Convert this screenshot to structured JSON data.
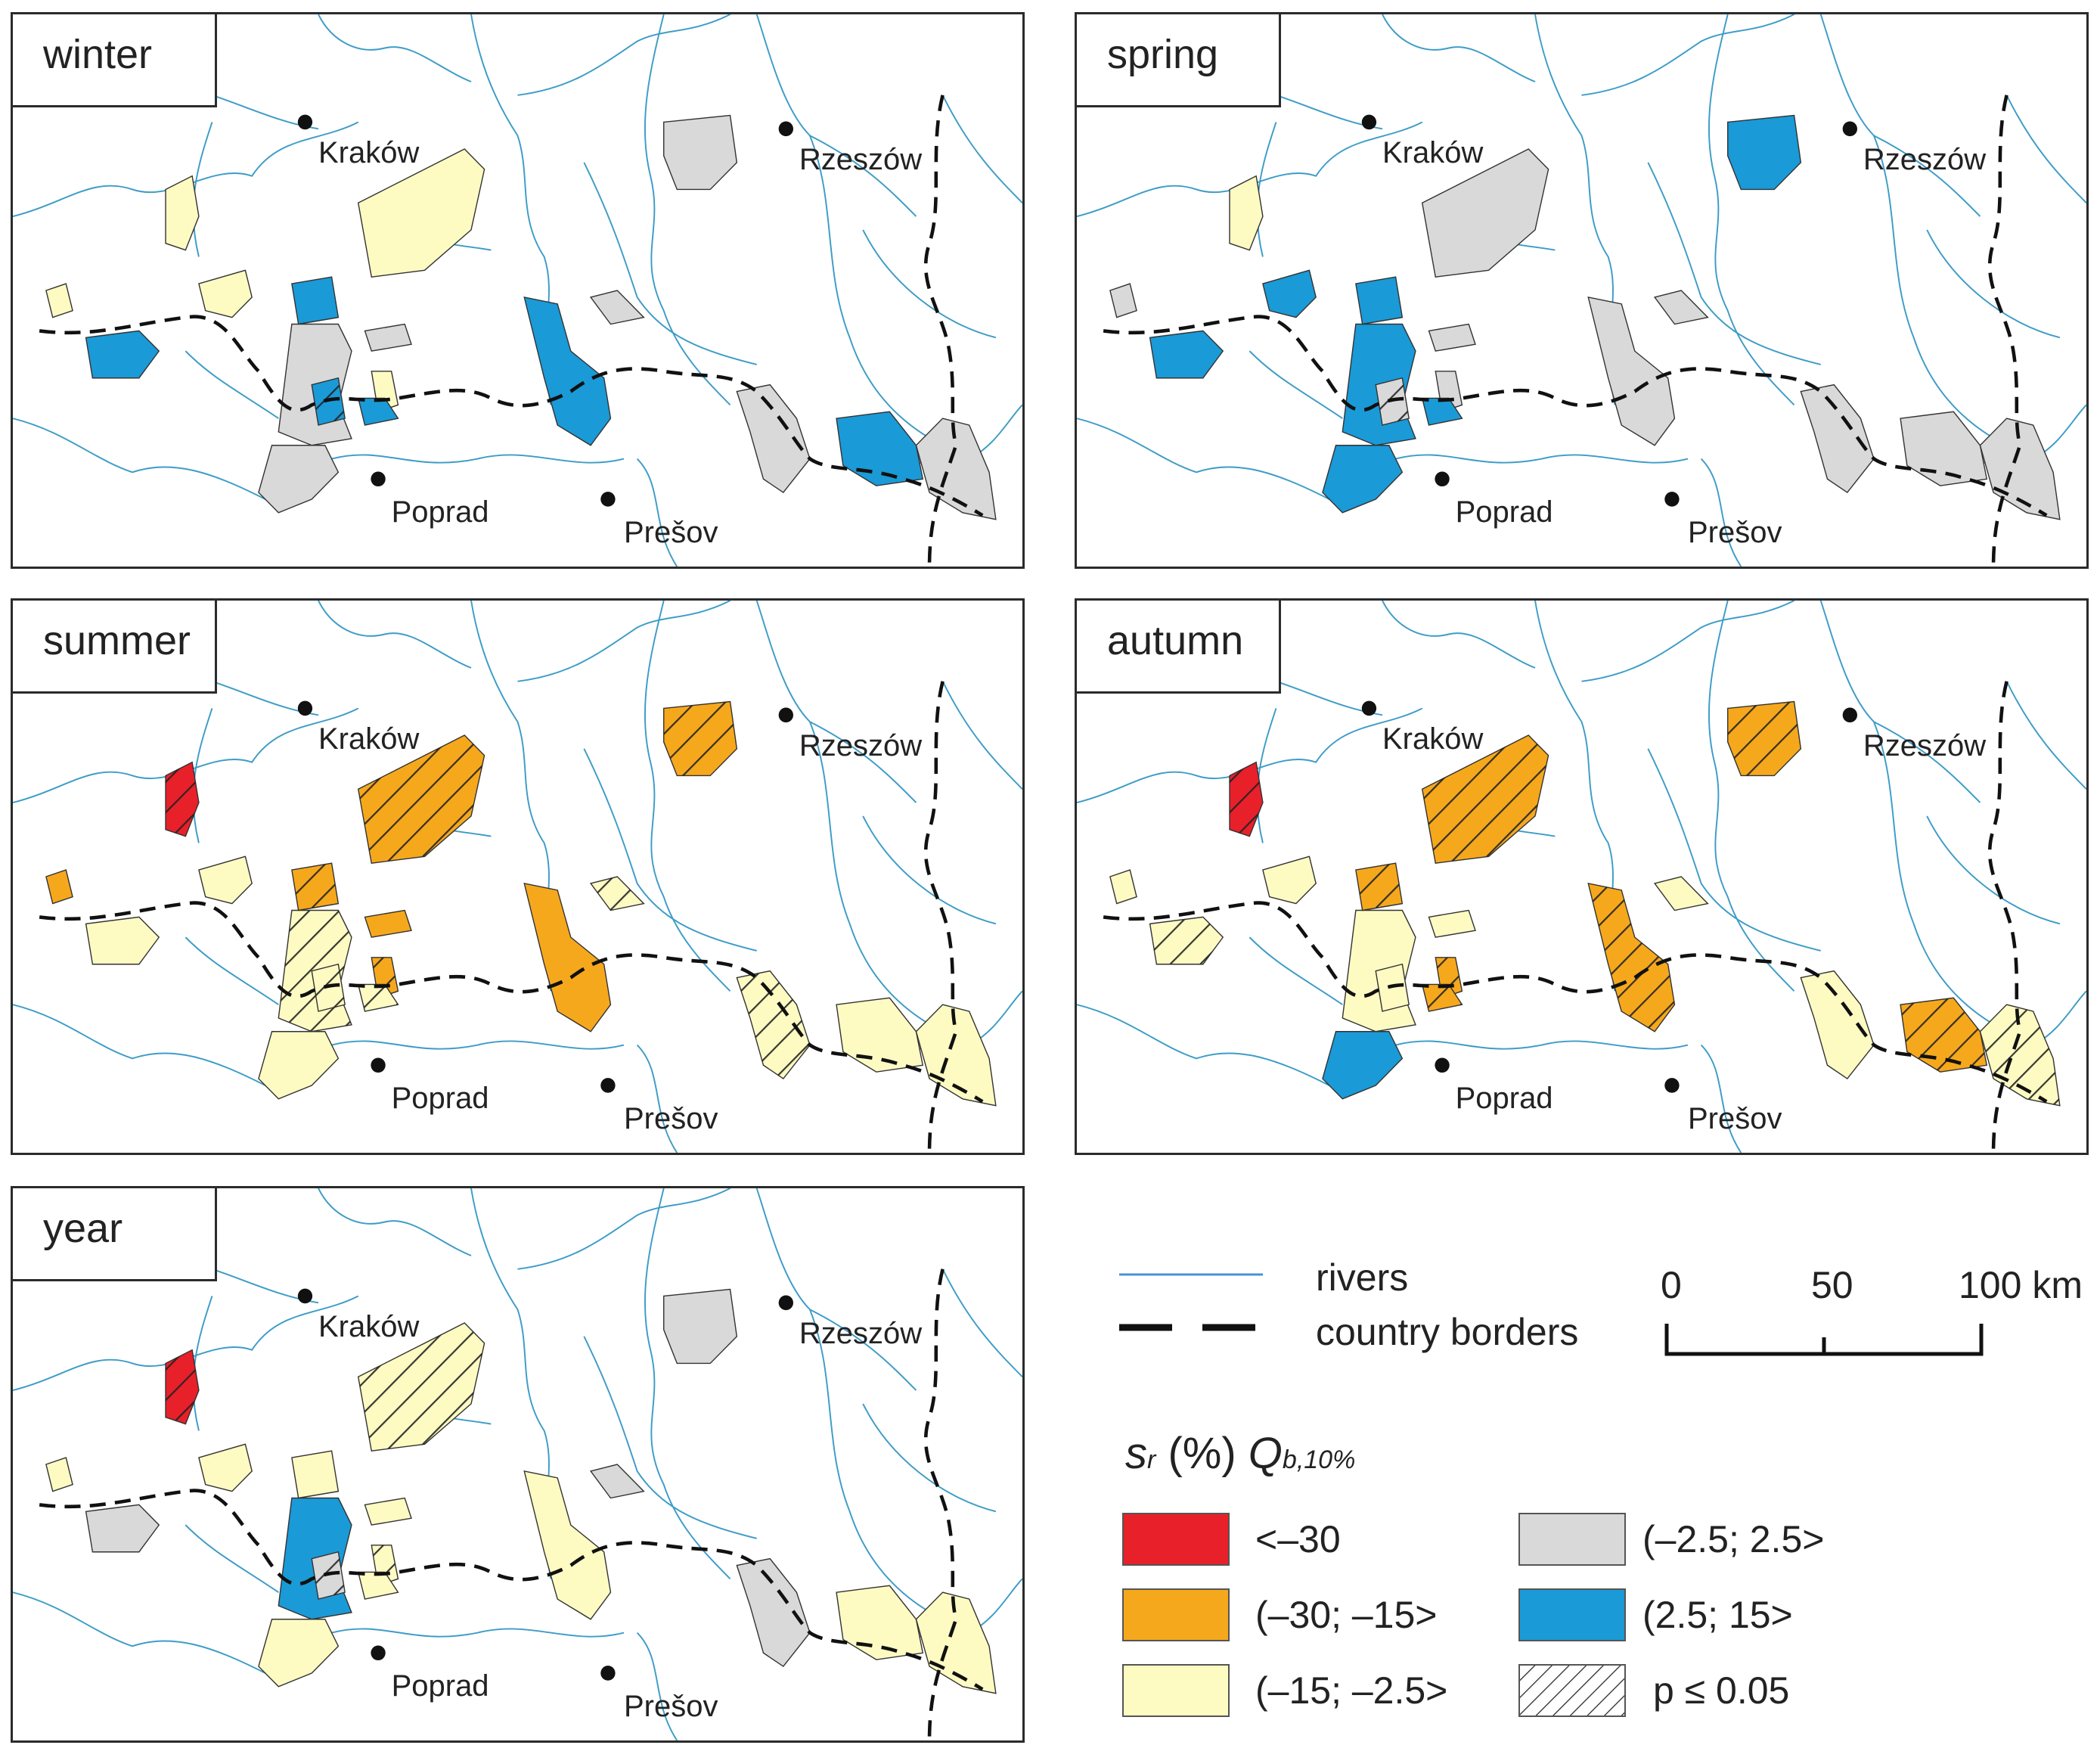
{
  "panels": [
    {
      "id": "winter",
      "label": "winter"
    },
    {
      "id": "spring",
      "label": "spring"
    },
    {
      "id": "summer",
      "label": "summer"
    },
    {
      "id": "autumn",
      "label": "autumn"
    },
    {
      "id": "year",
      "label": "year"
    }
  ],
  "cities": {
    "krakow": "Kraków",
    "rzeszow": "Rzeszów",
    "poprad": "Poprad",
    "presov": "Prešov"
  },
  "legend": {
    "rivers": "rivers",
    "borders": "country borders",
    "scale_0": "0",
    "scale_50": "50",
    "scale_100": "100 km",
    "title_s": "s",
    "title_r": "r",
    "title_pct": "(%)",
    "title_Q": "Q",
    "title_sub": "b,10%",
    "class_1": "<–30",
    "class_2": "(–30; –15>",
    "class_3": "(–15; –2.5>",
    "class_4": "(–2.5; 2.5>",
    "class_5": "(2.5; 15>",
    "class_6": "p ≤ 0.05"
  },
  "colors": {
    "red": "#e8202a",
    "orange": "#f6a81c",
    "yellow": "#fdfbc2",
    "gray": "#d9d9d9",
    "blue": "#1a9ad7",
    "river": "#3d9cc7"
  },
  "catchment_classes": {
    "winter": [
      "yellow",
      "yellow",
      "yellow",
      "blue",
      "yellow",
      "gray",
      "yellow",
      "gray",
      "blue",
      "gray",
      "gray",
      "blue",
      "gray",
      "gray",
      "blue",
      "gray",
      "blue",
      "blue"
    ],
    "spring": [
      "yellow",
      "blue",
      "gray",
      "blue",
      "gray",
      "gray",
      "gray",
      "blue",
      "gray",
      "blue",
      "gray",
      "gray",
      "blue",
      "gray",
      "gray",
      "gray",
      "blue",
      "blue"
    ],
    "summer": [
      "red",
      "yellow",
      "orange",
      "yellow",
      "orange",
      "orange",
      "orange",
      "yellow",
      "yellow",
      "yellow",
      "yellow",
      "orange",
      "orange",
      "yellow",
      "yellow",
      "yellow",
      "orange",
      "yellow"
    ],
    "autumn": [
      "red",
      "yellow",
      "yellow",
      "yellow",
      "orange",
      "yellow",
      "orange",
      "yellow",
      "yellow",
      "blue",
      "yellow",
      "orange",
      "orange",
      "yellow",
      "orange",
      "yellow",
      "orange",
      "orange"
    ],
    "year": [
      "red",
      "yellow",
      "yellow",
      "gray",
      "yellow",
      "yellow",
      "yellow",
      "blue",
      "gray",
      "yellow",
      "gray",
      "yellow",
      "gray",
      "gray",
      "yellow",
      "yellow",
      "yellow",
      "yellow"
    ]
  },
  "catchment_significant": {
    "winter": [
      false,
      false,
      false,
      false,
      false,
      false,
      false,
      false,
      true,
      false,
      false,
      false,
      false,
      false,
      false,
      false,
      false,
      false
    ],
    "spring": [
      false,
      false,
      false,
      false,
      false,
      false,
      false,
      false,
      true,
      false,
      false,
      false,
      false,
      false,
      false,
      false,
      false,
      false
    ],
    "summer": [
      true,
      false,
      false,
      false,
      true,
      false,
      true,
      true,
      true,
      false,
      true,
      false,
      true,
      true,
      false,
      false,
      true,
      true
    ],
    "autumn": [
      true,
      false,
      false,
      true,
      true,
      false,
      true,
      false,
      false,
      false,
      false,
      true,
      true,
      false,
      true,
      true,
      true,
      true
    ],
    "year": [
      true,
      false,
      false,
      false,
      true,
      false,
      true,
      false,
      true,
      false,
      false,
      false,
      false,
      false,
      false,
      false,
      false,
      false
    ]
  }
}
